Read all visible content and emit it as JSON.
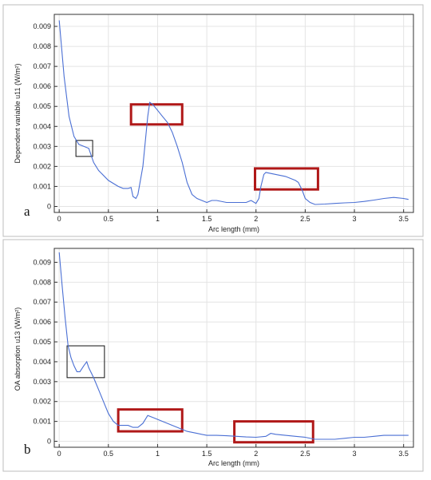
{
  "chart_data": [
    {
      "type": "line",
      "panel_label": "a",
      "xlabel": "Arc length (mm)",
      "ylabel": "Dependent variable u11 (W/m²)",
      "xlim": [
        -0.05,
        3.6
      ],
      "ylim": [
        -0.0003,
        0.0096
      ],
      "xticks": [
        0,
        0.5,
        1,
        1.5,
        2,
        2.5,
        3,
        3.5
      ],
      "xtick_labels": [
        "0",
        "0.5",
        "1",
        "1.5",
        "2",
        "2.5",
        "3",
        "3.5"
      ],
      "yticks": [
        0,
        0.001,
        0.002,
        0.003,
        0.004,
        0.005,
        0.006,
        0.007,
        0.008,
        0.009
      ],
      "ytick_labels": [
        "0",
        "0.001",
        "0.002",
        "0.003",
        "0.004",
        "0.005",
        "0.006",
        "0.007",
        "0.008",
        "0.009"
      ],
      "grid": true,
      "line_color": "#4a6fd4",
      "series": [
        {
          "x": [
            0,
            0.05,
            0.1,
            0.15,
            0.2,
            0.25,
            0.3,
            0.35,
            0.4,
            0.5,
            0.6,
            0.65,
            0.7,
            0.73,
            0.75,
            0.78,
            0.8,
            0.85,
            0.9,
            0.92,
            0.95,
            1.0,
            1.05,
            1.1,
            1.15,
            1.2,
            1.25,
            1.3,
            1.35,
            1.4,
            1.45,
            1.5,
            1.55,
            1.6,
            1.7,
            1.8,
            1.9,
            1.95,
            2.0,
            2.03,
            2.05,
            2.08,
            2.1,
            2.2,
            2.3,
            2.4,
            2.43,
            2.47,
            2.5,
            2.55,
            2.6,
            2.7,
            2.8,
            2.9,
            3.0,
            3.1,
            3.2,
            3.3,
            3.4,
            3.5,
            3.55
          ],
          "y": [
            0.0093,
            0.0065,
            0.0045,
            0.0035,
            0.0031,
            0.003,
            0.0029,
            0.0022,
            0.0018,
            0.0013,
            0.001,
            0.0009,
            0.0009,
            0.00095,
            0.0005,
            0.0004,
            0.0006,
            0.002,
            0.0045,
            0.0052,
            0.0051,
            0.0048,
            0.0045,
            0.0042,
            0.0037,
            0.003,
            0.0022,
            0.0012,
            0.0006,
            0.0004,
            0.0003,
            0.0002,
            0.0003,
            0.0003,
            0.0002,
            0.0002,
            0.0002,
            0.0003,
            0.00015,
            0.0004,
            0.001,
            0.0016,
            0.0017,
            0.0016,
            0.0015,
            0.0013,
            0.0012,
            0.0008,
            0.0004,
            0.0002,
            0.0001,
            0.00012,
            0.00015,
            0.00018,
            0.0002,
            0.00025,
            0.00032,
            0.0004,
            0.00045,
            0.0004,
            0.00035
          ]
        }
      ],
      "annotations": [
        {
          "shape": "rect",
          "color": "#b01818",
          "x0": 0.73,
          "x1": 1.25,
          "y0": 0.0041,
          "y1": 0.0051
        },
        {
          "shape": "rect",
          "color": "#b01818",
          "x0": 1.99,
          "x1": 2.63,
          "y0": 0.00085,
          "y1": 0.0019
        },
        {
          "shape": "rect",
          "color": "#111111",
          "x0": 0.17,
          "x1": 0.34,
          "y0": 0.0025,
          "y1": 0.0033
        }
      ]
    },
    {
      "type": "line",
      "panel_label": "b",
      "xlabel": "Arc length (mm)",
      "ylabel": "OA absorption u13 (W/m²)",
      "xlim": [
        -0.05,
        3.6
      ],
      "ylim": [
        -0.0003,
        0.0097
      ],
      "xticks": [
        0,
        0.5,
        1,
        1.5,
        2,
        2.5,
        3,
        3.5
      ],
      "xtick_labels": [
        "0",
        "0.5",
        "1",
        "1.5",
        "2",
        "2.5",
        "3",
        "3.5"
      ],
      "yticks": [
        0,
        0.001,
        0.002,
        0.003,
        0.004,
        0.005,
        0.006,
        0.007,
        0.008,
        0.009
      ],
      "ytick_labels": [
        "0",
        "0.001",
        "0.002",
        "0.003",
        "0.004",
        "0.005",
        "0.006",
        "0.007",
        "0.008",
        "0.009"
      ],
      "grid": true,
      "line_color": "#4a6fd4",
      "series": [
        {
          "x": [
            0,
            0.03,
            0.06,
            0.09,
            0.12,
            0.15,
            0.18,
            0.21,
            0.25,
            0.28,
            0.3,
            0.35,
            0.4,
            0.45,
            0.5,
            0.55,
            0.6,
            0.65,
            0.7,
            0.75,
            0.8,
            0.85,
            0.9,
            0.95,
            1.0,
            1.05,
            1.1,
            1.15,
            1.2,
            1.3,
            1.4,
            1.5,
            1.6,
            1.7,
            1.8,
            1.9,
            2.0,
            2.1,
            2.15,
            2.2,
            2.3,
            2.4,
            2.5,
            2.6,
            2.7,
            2.8,
            2.9,
            3.0,
            3.1,
            3.2,
            3.3,
            3.4,
            3.5,
            3.55
          ],
          "y": [
            0.0095,
            0.0078,
            0.0062,
            0.0048,
            0.0042,
            0.0038,
            0.0035,
            0.0035,
            0.0038,
            0.004,
            0.0037,
            0.0032,
            0.0026,
            0.002,
            0.0014,
            0.001,
            0.0008,
            0.0008,
            0.0008,
            0.0007,
            0.0007,
            0.0009,
            0.0013,
            0.0012,
            0.0011,
            0.001,
            0.0009,
            0.0008,
            0.0007,
            0.0005,
            0.0004,
            0.0003,
            0.0003,
            0.00028,
            0.00025,
            0.00022,
            0.0002,
            0.00025,
            0.0004,
            0.00035,
            0.0003,
            0.00025,
            0.0002,
            0.0001,
            0.0001,
            0.0001,
            0.00015,
            0.0002,
            0.0002,
            0.00025,
            0.0003,
            0.0003,
            0.0003,
            0.0003
          ]
        }
      ],
      "annotations": [
        {
          "shape": "rect",
          "color": "#b01818",
          "x0": 0.6,
          "x1": 1.25,
          "y0": 0.0005,
          "y1": 0.0016
        },
        {
          "shape": "rect",
          "color": "#b01818",
          "x0": 1.78,
          "x1": 2.58,
          "y0": -5e-05,
          "y1": 0.001
        },
        {
          "shape": "rect",
          "color": "#111111",
          "x0": 0.08,
          "x1": 0.46,
          "y0": 0.0032,
          "y1": 0.0048
        }
      ]
    }
  ]
}
